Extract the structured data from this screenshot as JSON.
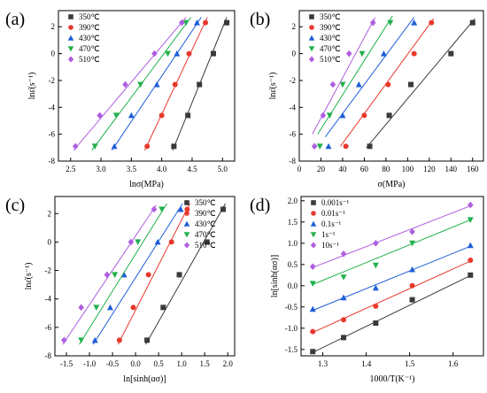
{
  "chart_data": [
    {
      "panel": "(a)",
      "type": "scatter",
      "xlabel": "lnσ(MPa)",
      "ylabel": "lnε̇(s⁻¹)",
      "xlim": [
        2.3,
        5.2
      ],
      "ylim": [
        -8,
        3.2
      ],
      "xticks": [
        2.5,
        3.0,
        3.5,
        4.0,
        4.5,
        5.0
      ],
      "xtick_labels": [
        "2.5",
        "3.0",
        "3.5",
        "4.0",
        "4.5",
        "5.0"
      ],
      "yticks": [
        -8,
        -6,
        -4,
        -2,
        0,
        2
      ],
      "ytick_labels": [
        "-8",
        "-6",
        "-4",
        "-2",
        "0",
        "2"
      ],
      "legend": "top-left",
      "series": [
        {
          "name": "350℃",
          "color": "#3a3a3a",
          "marker": "square",
          "x": [
            4.2,
            4.43,
            4.62,
            4.85,
            5.07
          ],
          "y": [
            -6.9,
            -4.6,
            -2.3,
            0.0,
            2.3
          ],
          "fit": [
            [
              4.18,
              -7.2
            ],
            [
              5.07,
              2.7
            ]
          ]
        },
        {
          "name": "390℃",
          "color": "#e8382c",
          "marker": "circle",
          "x": [
            3.76,
            4.0,
            4.22,
            4.45,
            4.72
          ],
          "y": [
            -6.9,
            -4.6,
            -2.3,
            0.0,
            2.3
          ],
          "fit": [
            [
              3.72,
              -7.2
            ],
            [
              4.75,
              2.7
            ]
          ]
        },
        {
          "name": "430℃",
          "color": "#1f5ed8",
          "marker": "triangle-up",
          "x": [
            3.22,
            3.5,
            3.92,
            4.25,
            4.58
          ],
          "y": [
            -6.9,
            -4.6,
            -2.3,
            0.0,
            2.3
          ],
          "fit": [
            [
              3.18,
              -7.2
            ],
            [
              4.65,
              2.7
            ]
          ]
        },
        {
          "name": "470℃",
          "color": "#22b14c",
          "marker": "triangle-down",
          "x": [
            2.9,
            3.25,
            3.65,
            4.1,
            4.4
          ],
          "y": [
            -6.9,
            -4.6,
            -2.3,
            0.0,
            2.3
          ],
          "fit": [
            [
              2.85,
              -7.2
            ],
            [
              4.48,
              2.7
            ]
          ]
        },
        {
          "name": "510℃",
          "color": "#b05ee0",
          "marker": "diamond",
          "x": [
            2.58,
            2.98,
            3.4,
            3.88,
            4.33
          ],
          "y": [
            -6.9,
            -4.6,
            -2.3,
            0.0,
            2.3
          ],
          "fit": [
            [
              2.55,
              -7.2
            ],
            [
              4.4,
              2.7
            ]
          ]
        }
      ]
    },
    {
      "panel": "(b)",
      "type": "scatter",
      "xlabel": "σ(MPa)",
      "ylabel": "lnε̇(s⁻¹)",
      "xlim": [
        0,
        170
      ],
      "ylim": [
        -8,
        3.2
      ],
      "xticks": [
        0,
        20,
        40,
        60,
        80,
        100,
        120,
        140,
        160
      ],
      "xtick_labels": [
        "0",
        "20",
        "40",
        "60",
        "80",
        "100",
        "120",
        "140",
        "160"
      ],
      "yticks": [
        -8,
        -6,
        -4,
        -2,
        0,
        2
      ],
      "ytick_labels": [
        "-8",
        "-6",
        "-4",
        "-2",
        "0",
        "2"
      ],
      "legend": "top-left",
      "series": [
        {
          "name": "350℃",
          "color": "#3a3a3a",
          "marker": "square",
          "x": [
            65,
            83,
            103,
            140,
            160
          ],
          "y": [
            -6.9,
            -4.6,
            -2.3,
            0.0,
            2.3
          ],
          "fit": [
            [
              62,
              -7.0
            ],
            [
              162,
              2.6
            ]
          ]
        },
        {
          "name": "390℃",
          "color": "#e8382c",
          "marker": "circle",
          "x": [
            43,
            60,
            82,
            106,
            122
          ],
          "y": [
            -6.9,
            -4.6,
            -2.3,
            0.0,
            2.3
          ],
          "fit": [
            [
              38,
              -6.9
            ],
            [
              124,
              2.6
            ]
          ]
        },
        {
          "name": "430℃",
          "color": "#1f5ed8",
          "marker": "triangle-up",
          "x": [
            27,
            40,
            55,
            78,
            106
          ],
          "y": [
            -6.9,
            -4.6,
            -2.3,
            0.0,
            2.3
          ],
          "fit": [
            [
              24,
              -6.2
            ],
            [
              106,
              2.7
            ]
          ]
        },
        {
          "name": "470℃",
          "color": "#22b14c",
          "marker": "triangle-down",
          "x": [
            19,
            28,
            40,
            58,
            84
          ],
          "y": [
            -6.9,
            -4.6,
            -2.3,
            0.0,
            2.3
          ],
          "fit": [
            [
              17,
              -6.0
            ],
            [
              86,
              2.8
            ]
          ]
        },
        {
          "name": "510℃",
          "color": "#b05ee0",
          "marker": "diamond",
          "x": [
            14,
            22,
            31,
            46,
            68
          ],
          "y": [
            -6.9,
            -4.6,
            -2.3,
            0.0,
            2.3
          ],
          "fit": [
            [
              12,
              -6.0
            ],
            [
              70,
              2.7
            ]
          ]
        }
      ]
    },
    {
      "panel": "(c)",
      "type": "scatter",
      "xlabel": "ln[sinh(ασ)]",
      "ylabel": "lnε̇(s⁻¹)",
      "xlim": [
        -1.75,
        2.15
      ],
      "ylim": [
        -8,
        3.2
      ],
      "xticks": [
        -1.5,
        -1.0,
        -0.5,
        0.0,
        0.5,
        1.0,
        1.5,
        2.0
      ],
      "xtick_labels": [
        "-1.5",
        "-1.0",
        "-0.5",
        "0.0",
        "0.5",
        "1.0",
        "1.5",
        "2.0"
      ],
      "yticks": [
        -8,
        -6,
        -4,
        -2,
        0,
        2
      ],
      "ytick_labels": [
        "-8",
        "-6",
        "-4",
        "-2",
        "0",
        "2"
      ],
      "legend": "top-right",
      "series": [
        {
          "name": "350℃",
          "color": "#3a3a3a",
          "marker": "square",
          "x": [
            0.25,
            0.6,
            0.95,
            1.55,
            1.9
          ],
          "y": [
            -6.9,
            -4.6,
            -2.3,
            0.0,
            2.3
          ],
          "fit": [
            [
              0.22,
              -7.2
            ],
            [
              1.95,
              2.7
            ]
          ]
        },
        {
          "name": "390℃",
          "color": "#e8382c",
          "marker": "circle",
          "x": [
            -0.35,
            -0.05,
            0.28,
            0.78,
            1.12
          ],
          "y": [
            -6.9,
            -4.6,
            -2.3,
            0.0,
            2.3
          ],
          "fit": [
            [
              -0.38,
              -7.2
            ],
            [
              1.18,
              2.7
            ]
          ]
        },
        {
          "name": "430℃",
          "color": "#1f5ed8",
          "marker": "triangle-up",
          "x": [
            -0.88,
            -0.55,
            -0.25,
            0.48,
            0.98
          ],
          "y": [
            -6.9,
            -4.6,
            -2.3,
            0.0,
            2.3
          ],
          "fit": [
            [
              -0.92,
              -7.2
            ],
            [
              1.02,
              2.7
            ]
          ]
        },
        {
          "name": "470℃",
          "color": "#22b14c",
          "marker": "triangle-down",
          "x": [
            -1.18,
            -0.85,
            -0.45,
            0.05,
            0.57
          ],
          "y": [
            -6.9,
            -4.6,
            -2.3,
            0.0,
            2.3
          ],
          "fit": [
            [
              -1.22,
              -7.2
            ],
            [
              0.68,
              2.7
            ]
          ]
        },
        {
          "name": "510℃",
          "color": "#b05ee0",
          "marker": "diamond",
          "x": [
            -1.55,
            -1.18,
            -0.62,
            -0.1,
            0.4
          ],
          "y": [
            -6.9,
            -4.6,
            -2.3,
            0.0,
            2.3
          ],
          "fit": [
            [
              -1.58,
              -7.2
            ],
            [
              0.45,
              2.6
            ]
          ]
        }
      ]
    },
    {
      "panel": "(d)",
      "type": "scatter",
      "xlabel": "1000/T(K⁻¹)",
      "ylabel": "ln[sinh(ασ)]",
      "xlim": [
        1.25,
        1.67
      ],
      "ylim": [
        -1.65,
        2.1
      ],
      "xticks": [
        1.3,
        1.4,
        1.5,
        1.6
      ],
      "xtick_labels": [
        "1.3",
        "1.4",
        "1.5",
        "1.6"
      ],
      "yticks": [
        -1.5,
        -1.0,
        -0.5,
        0.0,
        0.5,
        1.0,
        1.5,
        2.0
      ],
      "ytick_labels": [
        "-1.5",
        "-1.0",
        "-0.5",
        "0.0",
        "0.5",
        "1.0",
        "1.5",
        "2.0"
      ],
      "legend": "top-left",
      "series": [
        {
          "name": "0.001s⁻¹",
          "color": "#3a3a3a",
          "marker": "square",
          "x": [
            1.277,
            1.348,
            1.422,
            1.506,
            1.64
          ],
          "y": [
            -1.55,
            -1.22,
            -0.88,
            -0.33,
            0.25
          ],
          "fit": [
            [
              1.277,
              -1.57
            ],
            [
              1.64,
              0.24
            ]
          ]
        },
        {
          "name": "0.01s⁻¹",
          "color": "#e8382c",
          "marker": "circle",
          "x": [
            1.277,
            1.348,
            1.422,
            1.506,
            1.64
          ],
          "y": [
            -1.08,
            -0.8,
            -0.48,
            0.0,
            0.6
          ],
          "fit": [
            [
              1.277,
              -1.1
            ],
            [
              1.64,
              0.58
            ]
          ]
        },
        {
          "name": "0.1s⁻¹",
          "color": "#1f5ed8",
          "marker": "triangle-up",
          "x": [
            1.277,
            1.348,
            1.422,
            1.506,
            1.64
          ],
          "y": [
            -0.55,
            -0.28,
            -0.05,
            0.38,
            0.95
          ],
          "fit": [
            [
              1.277,
              -0.58
            ],
            [
              1.64,
              0.93
            ]
          ]
        },
        {
          "name": "1s⁻¹",
          "color": "#22b14c",
          "marker": "triangle-down",
          "x": [
            1.277,
            1.348,
            1.422,
            1.506,
            1.64
          ],
          "y": [
            0.05,
            0.2,
            0.48,
            1.0,
            1.55
          ],
          "fit": [
            [
              1.277,
              0.03
            ],
            [
              1.64,
              1.55
            ]
          ]
        },
        {
          "name": "10s⁻¹",
          "color": "#b05ee0",
          "marker": "diamond",
          "x": [
            1.277,
            1.348,
            1.422,
            1.506,
            1.64
          ],
          "y": [
            0.45,
            0.75,
            1.0,
            1.27,
            1.9
          ],
          "fit": [
            [
              1.277,
              0.43
            ],
            [
              1.64,
              1.88
            ]
          ]
        }
      ]
    }
  ]
}
